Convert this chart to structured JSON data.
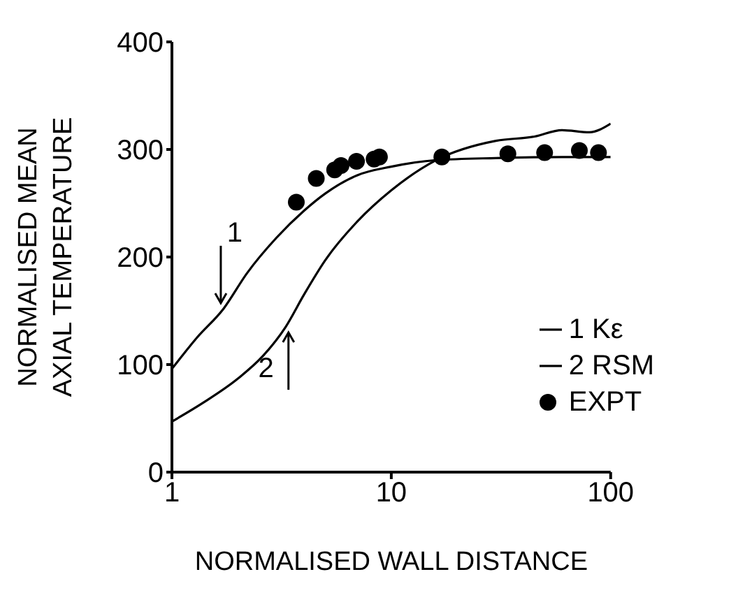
{
  "chart_data": {
    "type": "line",
    "xlabel": "NORMALISED WALL DISTANCE",
    "ylabel": "NORMALISED MEAN\nAXIAL TEMPERATURE",
    "log": "x",
    "xlim": [
      1,
      100
    ],
    "xticks": [
      1,
      10,
      100
    ],
    "ylim": [
      0,
      400
    ],
    "yticks": [
      0,
      100,
      200,
      300,
      400
    ],
    "grid": false,
    "legend": "right",
    "marker": "none",
    "line_style": "solid",
    "series": [
      {
        "name": "1 Kε",
        "color": "#000000",
        "x": [
          1,
          1.3,
          1.72,
          2.2,
          3,
          4,
          5,
          7,
          10,
          16,
          30,
          60,
          100
        ],
        "values": [
          96,
          125,
          152,
          185,
          218,
          243,
          259,
          276,
          284,
          290,
          292,
          293,
          293
        ]
      },
      {
        "name": "2 RSM",
        "color": "#000000",
        "x": [
          1,
          1.4,
          2,
          2.6,
          3.3,
          4,
          5,
          7,
          10,
          16,
          30,
          45,
          60,
          80,
          100
        ],
        "values": [
          47,
          65,
          87,
          108,
          135,
          165,
          197,
          233,
          262,
          290,
          308,
          312,
          318,
          316,
          324
        ]
      },
      {
        "name": "EXPT",
        "type": "scatter",
        "marker": "circle",
        "color": "#000000",
        "x": [
          3.69,
          4.55,
          5.52,
          5.9,
          6.94,
          8.35,
          8.83,
          17,
          34,
          50,
          72,
          88
        ],
        "values": [
          251,
          273,
          281,
          285,
          289,
          291,
          293,
          293,
          296,
          297,
          299,
          297
        ]
      }
    ],
    "annotations": [
      {
        "text": "1",
        "x": 1.72,
        "y": 152
      },
      {
        "text": "2",
        "x": 3.3,
        "y": 135
      }
    ]
  }
}
